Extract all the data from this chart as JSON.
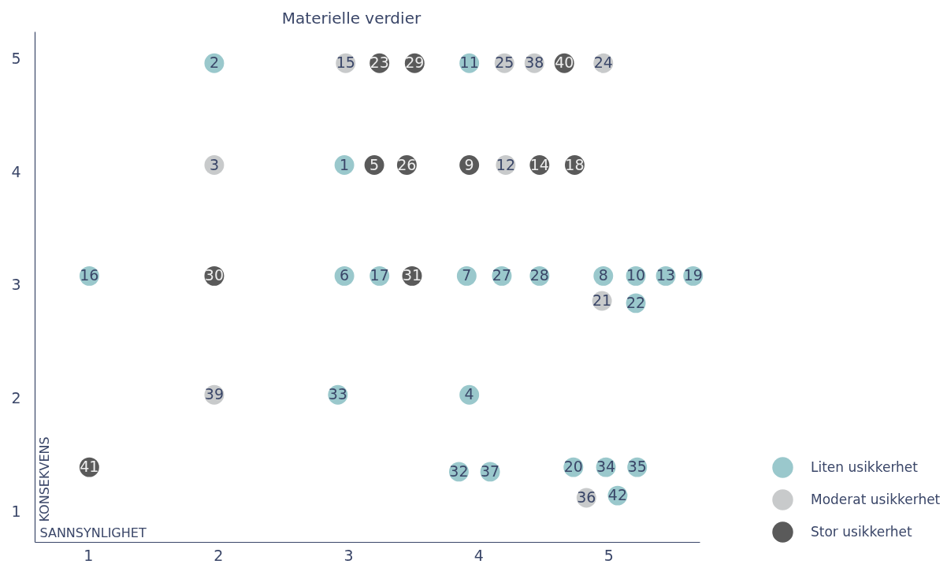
{
  "chart_data": {
    "type": "scatter",
    "title": "Materielle verdier",
    "xlabel": "SANNSYNLIGHET",
    "ylabel": "KONSEKVENS",
    "xlim": [
      0.59,
      5.7
    ],
    "ylim": [
      0.73,
      5.24
    ],
    "xticks": [
      1,
      2,
      3,
      4,
      5
    ],
    "yticks": [
      1,
      2,
      3,
      4,
      5
    ],
    "grid": false,
    "legend": "bottom right",
    "marker": "circle",
    "series": [
      {
        "name": "Liten usikkerhet",
        "color": "#9ac8cc",
        "x": [
          1.97,
          3.93,
          2.97,
          1.01,
          2.97,
          3.24,
          3.91,
          4.18,
          4.47,
          4.96,
          5.21,
          5.44,
          5.65,
          5.21,
          2.92,
          3.93,
          3.85,
          4.09,
          4.73,
          4.98,
          5.22,
          5.07
        ],
        "values": [
          4.96,
          4.96,
          4.06,
          3.08,
          3.08,
          3.08,
          3.08,
          3.08,
          3.08,
          3.08,
          3.08,
          3.08,
          3.08,
          2.84,
          2.03,
          2.03,
          1.35,
          1.35,
          1.39,
          1.39,
          1.39,
          1.14
        ]
      },
      {
        "name": "Moderat usikkerhet",
        "color": "#c8cacb",
        "x": [
          2.98,
          4.2,
          4.43,
          4.96,
          1.97,
          4.21,
          4.95,
          1.97,
          4.83
        ],
        "values": [
          4.96,
          4.96,
          4.96,
          4.96,
          4.06,
          4.06,
          2.86,
          2.03,
          1.12
        ]
      },
      {
        "name": "Stor usikkerhet",
        "color": "#5a5a5a",
        "x": [
          3.24,
          3.51,
          4.66,
          3.2,
          3.45,
          3.93,
          4.47,
          4.74,
          3.49,
          1.97,
          1.01
        ],
        "values": [
          4.96,
          4.96,
          4.96,
          4.06,
          4.06,
          4.06,
          4.06,
          4.06,
          3.08,
          3.08,
          1.39
        ]
      }
    ],
    "annotations": [
      {
        "text": "2",
        "x": 1.97,
        "y": 4.96
      },
      {
        "text": "11",
        "x": 3.93,
        "y": 4.96
      },
      {
        "text": "1",
        "x": 2.97,
        "y": 4.06
      },
      {
        "text": "16",
        "x": 1.01,
        "y": 3.08
      },
      {
        "text": "6",
        "x": 2.97,
        "y": 3.08
      },
      {
        "text": "17",
        "x": 3.24,
        "y": 3.08
      },
      {
        "text": "7",
        "x": 3.91,
        "y": 3.08
      },
      {
        "text": "27",
        "x": 4.18,
        "y": 3.08
      },
      {
        "text": "28",
        "x": 4.47,
        "y": 3.08
      },
      {
        "text": "8",
        "x": 4.96,
        "y": 3.08
      },
      {
        "text": "10",
        "x": 5.21,
        "y": 3.08
      },
      {
        "text": "13",
        "x": 5.44,
        "y": 3.08
      },
      {
        "text": "19",
        "x": 5.65,
        "y": 3.08
      },
      {
        "text": "22",
        "x": 5.21,
        "y": 2.84
      },
      {
        "text": "33",
        "x": 2.92,
        "y": 2.03
      },
      {
        "text": "4",
        "x": 3.93,
        "y": 2.03
      },
      {
        "text": "32",
        "x": 3.85,
        "y": 1.35
      },
      {
        "text": "37",
        "x": 4.09,
        "y": 1.35
      },
      {
        "text": "20",
        "x": 4.73,
        "y": 1.39
      },
      {
        "text": "34",
        "x": 4.98,
        "y": 1.39
      },
      {
        "text": "35",
        "x": 5.22,
        "y": 1.39
      },
      {
        "text": "42",
        "x": 5.07,
        "y": 1.14
      },
      {
        "text": "15",
        "x": 2.98,
        "y": 4.96
      },
      {
        "text": "25",
        "x": 4.2,
        "y": 4.96
      },
      {
        "text": "38",
        "x": 4.43,
        "y": 4.96
      },
      {
        "text": "24",
        "x": 4.96,
        "y": 4.96
      },
      {
        "text": "3",
        "x": 1.97,
        "y": 4.06
      },
      {
        "text": "12",
        "x": 4.21,
        "y": 4.06
      },
      {
        "text": "21",
        "x": 4.95,
        "y": 2.86
      },
      {
        "text": "39",
        "x": 1.97,
        "y": 2.03
      },
      {
        "text": "36",
        "x": 4.83,
        "y": 1.12
      },
      {
        "text": "23",
        "x": 3.24,
        "y": 4.96
      },
      {
        "text": "29",
        "x": 3.51,
        "y": 4.96
      },
      {
        "text": "40",
        "x": 4.66,
        "y": 4.96
      },
      {
        "text": "5",
        "x": 3.2,
        "y": 4.06
      },
      {
        "text": "26",
        "x": 3.45,
        "y": 4.06
      },
      {
        "text": "9",
        "x": 3.93,
        "y": 4.06
      },
      {
        "text": "14",
        "x": 4.47,
        "y": 4.06
      },
      {
        "text": "18",
        "x": 4.74,
        "y": 4.06
      },
      {
        "text": "31",
        "x": 3.49,
        "y": 3.08
      },
      {
        "text": "30",
        "x": 1.97,
        "y": 3.08
      },
      {
        "text": "41",
        "x": 1.01,
        "y": 1.39
      }
    ]
  }
}
